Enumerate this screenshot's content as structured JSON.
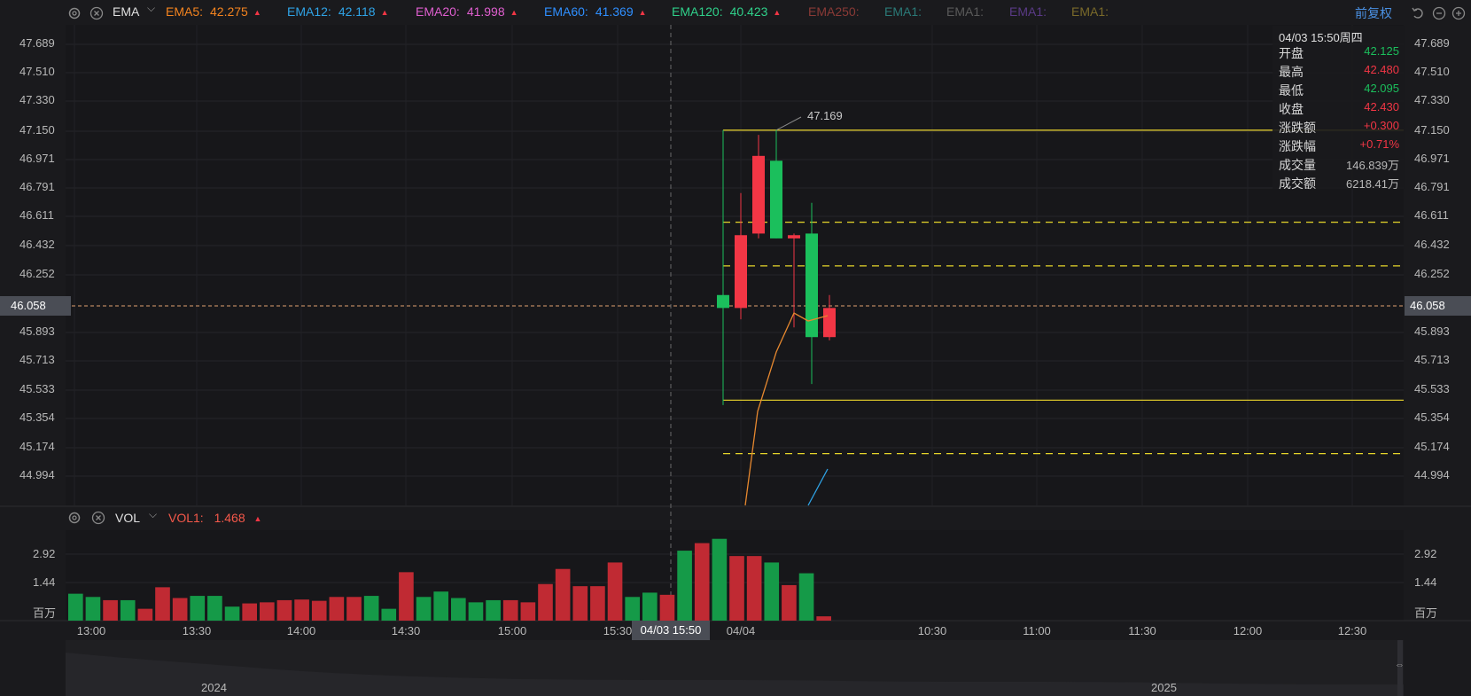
{
  "main_header": {
    "indicator": "EMA",
    "emas": [
      {
        "label": "EMA5:",
        "value": "42.275",
        "color": "#f5841f",
        "arrow": "▲",
        "arrow_color": "#f23645"
      },
      {
        "label": "EMA12:",
        "value": "42.118",
        "color": "#2fa3e6",
        "arrow": "▲",
        "arrow_color": "#f23645"
      },
      {
        "label": "EMA20:",
        "value": "41.998",
        "color": "#e05fd0",
        "arrow": "▲",
        "arrow_color": "#f23645"
      },
      {
        "label": "EMA60:",
        "value": "41.369",
        "color": "#2f8fff",
        "arrow": "▲",
        "arrow_color": "#f23645"
      },
      {
        "label": "EMA120:",
        "value": "40.423",
        "color": "#2fd08a",
        "arrow": "▲",
        "arrow_color": "#f23645"
      },
      {
        "label": "EMA250:",
        "value": "",
        "color": "#8a3a36",
        "arrow": "",
        "arrow_color": "#8a3a36"
      },
      {
        "label": "EMA1:",
        "value": "",
        "color": "#2a7a78",
        "arrow": "",
        "arrow_color": ""
      },
      {
        "label": "EMA1:",
        "value": "",
        "color": "#5a5a5a",
        "arrow": "",
        "arrow_color": ""
      },
      {
        "label": "EMA1:",
        "value": "",
        "color": "#5a3a86",
        "arrow": "",
        "arrow_color": ""
      },
      {
        "label": "EMA1:",
        "value": "",
        "color": "#7a6a2a",
        "arrow": "",
        "arrow_color": ""
      }
    ],
    "adjust_label": "前复权"
  },
  "price_axis": [
    "47.689",
    "47.510",
    "47.330",
    "47.150",
    "46.971",
    "46.791",
    "46.611",
    "46.432",
    "46.252",
    "46.058",
    "45.893",
    "45.713",
    "45.533",
    "45.354",
    "45.174",
    "44.994"
  ],
  "current_price_tag": "46.058",
  "high_marker": "47.169",
  "info_panel": {
    "datetime": "04/03 15:50周四",
    "rows": [
      {
        "k": "开盘",
        "v": "42.125",
        "c": "green"
      },
      {
        "k": "最高",
        "v": "42.480",
        "c": "red"
      },
      {
        "k": "最低",
        "v": "42.095",
        "c": "green"
      },
      {
        "k": "收盘",
        "v": "42.430",
        "c": "red"
      },
      {
        "k": "涨跌额",
        "v": "+0.300",
        "c": "red"
      },
      {
        "k": "涨跌幅",
        "v": "+0.71%",
        "c": "red"
      },
      {
        "k": "成交量",
        "v": "146.839万",
        "c": "grey"
      },
      {
        "k": "成交额",
        "v": "6218.41万",
        "c": "grey"
      }
    ]
  },
  "vol_header": {
    "indicator": "VOL",
    "label": "VOL1:",
    "value": "1.468",
    "color": "#f5584a",
    "arrow": "▲"
  },
  "vol_axis": {
    "ticks": [
      "2.92",
      "1.44"
    ],
    "unit": "百万"
  },
  "time_axis": [
    "13:00",
    "13:30",
    "14:00",
    "14:30",
    "15:00",
    "15:30",
    "04/04",
    "10:30",
    "11:00",
    "11:30",
    "12:00",
    "12:30"
  ],
  "crosshair_time": "04/03 15:50",
  "overview_years": [
    "2024",
    "2025"
  ],
  "chart_data": {
    "type": "candlestick",
    "ylim": [
      44.85,
      47.82
    ],
    "candles": [
      {
        "o": 46.07,
        "h": 46.55,
        "l": 45.47,
        "c": 46.15
      },
      {
        "o": 46.07,
        "h": 46.78,
        "l": 46.0,
        "c": 46.52
      },
      {
        "o": 46.53,
        "h": 47.14,
        "l": 46.5,
        "c": 47.01
      },
      {
        "o": 46.98,
        "h": 47.17,
        "l": 46.5,
        "c": 46.5
      },
      {
        "o": 46.5,
        "h": 46.53,
        "l": 45.95,
        "c": 46.52
      },
      {
        "o": 46.53,
        "h": 46.72,
        "l": 45.6,
        "c": 45.89
      },
      {
        "o": 46.07,
        "h": 46.15,
        "l": 45.87,
        "c": 45.89
      }
    ],
    "hlines": [
      {
        "y": 47.169,
        "style": "solid"
      },
      {
        "y": 46.6,
        "style": "dashed"
      },
      {
        "y": 46.33,
        "style": "dashed"
      },
      {
        "y": 45.5,
        "style": "solid"
      },
      {
        "y": 45.17,
        "style": "dashed"
      }
    ],
    "volumes": [
      1.25,
      1.1,
      0.95,
      0.95,
      0.55,
      1.55,
      1.05,
      1.15,
      1.15,
      0.65,
      0.8,
      0.85,
      0.95,
      0.98,
      0.92,
      1.1,
      1.1,
      1.15,
      0.55,
      2.25,
      1.1,
      1.35,
      1.05,
      0.85,
      0.95,
      0.95,
      0.85,
      1.7,
      2.4,
      1.6,
      1.6,
      2.7,
      1.1,
      1.3,
      1.2,
      3.25,
      3.6,
      3.8,
      3.0,
      3.0,
      2.7,
      1.65,
      2.2,
      0.2
    ],
    "volume_colors": [
      "g",
      "g",
      "r",
      "g",
      "r",
      "r",
      "r",
      "g",
      "g",
      "g",
      "r",
      "r",
      "r",
      "r",
      "r",
      "r",
      "r",
      "g",
      "g",
      "r",
      "g",
      "g",
      "g",
      "g",
      "g",
      "r",
      "r",
      "r",
      "r",
      "r",
      "r",
      "r",
      "g",
      "g",
      "r",
      "g",
      "r",
      "g",
      "r",
      "r",
      "g",
      "r",
      "g",
      "r"
    ],
    "vol_ylim": [
      0,
      4.2
    ]
  }
}
